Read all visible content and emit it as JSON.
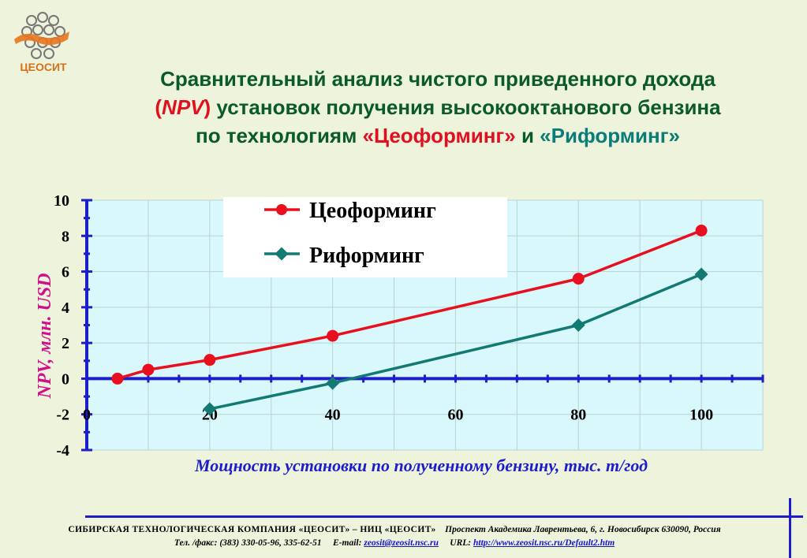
{
  "logo": {
    "text": "ЦЕОСИТ"
  },
  "title": {
    "line1": "Сравнительный анализ чистого приведенного дохода",
    "line2_open": "(",
    "line2_npv": "NPV",
    "line2_close": ")",
    "line2_rest": " установок получения высокооктанового бензина",
    "line3_pre": "по технологиям ",
    "line3_zeo": "«Цеоформинг»",
    "line3_and": " и ",
    "line3_ref": "«Риформинг»"
  },
  "colors": {
    "zeoforming": "#e8101e",
    "reforming": "#137a73",
    "plot_bg": "#d8f8fb",
    "axis": "#1d1dcc"
  },
  "chart_data": {
    "type": "line",
    "ylabel": "NPV, млн. USD",
    "xlabel": "Мощность установки по полученному бензину, тыс. т/год",
    "xlim": [
      0,
      110
    ],
    "ylim": [
      -4,
      10
    ],
    "x_ticks": [
      "0",
      "20",
      "40",
      "60",
      "80",
      "100"
    ],
    "y_ticks": [
      "10",
      "8",
      "6",
      "4",
      "2",
      "0",
      "-2",
      "-4"
    ],
    "grid": true,
    "legend_position": "top-left",
    "series": [
      {
        "name": "Цеоформинг",
        "marker": "circle",
        "x": [
          5,
          10,
          20,
          40,
          80,
          100
        ],
        "y": [
          0,
          0.5,
          1.05,
          2.4,
          5.6,
          8.3
        ]
      },
      {
        "name": "Риформинг",
        "marker": "diamond",
        "x": [
          20,
          40,
          80,
          100
        ],
        "y": [
          -1.7,
          -0.25,
          3.0,
          5.85
        ]
      }
    ]
  },
  "footer": {
    "company": "СИБИРСКАЯ ТЕХНОЛОГИЧЕСКАЯ КОМПАНИЯ «ЦЕОСИТ» – НИЦ «ЦЕОСИТ»",
    "address": "Проспект Академика Лаврентьева, 6, г. Новосибирск 630090, Россия",
    "phone": "Тел. /факс: (383) 330-05-96, 335-62-51",
    "email_label": "E-mail:",
    "email": "zeosit@zeosit.nsc.ru",
    "url_label": "URL:",
    "url": "http://www.zeosit.nsc.ru/Default2.htm"
  }
}
